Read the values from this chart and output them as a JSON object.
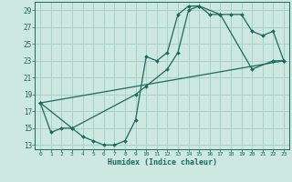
{
  "xlabel": "Humidex (Indice chaleur)",
  "ylabel": "",
  "bg_color": "#cce8e0",
  "grid_color": "#aad0c8",
  "line_color": "#1a6b5a",
  "xlim": [
    -0.5,
    23.5
  ],
  "ylim": [
    12.5,
    30.0
  ],
  "xticks": [
    0,
    1,
    2,
    3,
    4,
    5,
    6,
    7,
    8,
    9,
    10,
    11,
    12,
    13,
    14,
    15,
    16,
    17,
    18,
    19,
    20,
    21,
    22,
    23
  ],
  "yticks": [
    13,
    15,
    17,
    19,
    21,
    23,
    25,
    27,
    29
  ],
  "line1_x": [
    0,
    1,
    2,
    3,
    4,
    5,
    6,
    7,
    8,
    9,
    10,
    11,
    12,
    13,
    14,
    15,
    16,
    17,
    18,
    19,
    20,
    21,
    22,
    23
  ],
  "line1_y": [
    18,
    14.5,
    15,
    15,
    14,
    13.5,
    13,
    13,
    13.5,
    16,
    23.5,
    23,
    24,
    28.5,
    29.5,
    29.5,
    28.5,
    28.5,
    28.5,
    28.5,
    26.5,
    26,
    26.5,
    23
  ],
  "line2_x": [
    0,
    3,
    9,
    10,
    12,
    13,
    14,
    15,
    17,
    20,
    22,
    23
  ],
  "line2_y": [
    18,
    15,
    19,
    20,
    22,
    24,
    29,
    29.5,
    28.5,
    22,
    23,
    23
  ],
  "line3_x": [
    0,
    23
  ],
  "line3_y": [
    18,
    23
  ]
}
